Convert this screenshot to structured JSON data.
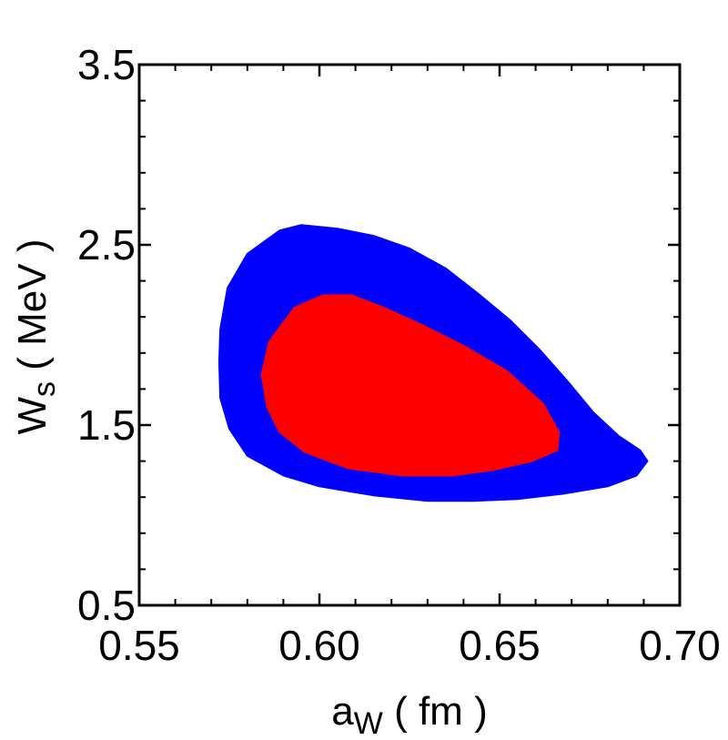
{
  "chart_data": {
    "type": "contour",
    "title": "",
    "xlabel": {
      "main": "a",
      "sub": "W",
      "unit": " ( fm )"
    },
    "ylabel": {
      "main": "W",
      "sub": "s",
      "unit": " ( MeV )"
    },
    "xlim": [
      0.55,
      0.7
    ],
    "ylim": [
      0.5,
      3.5
    ],
    "x_tick_labels": [
      "0.55",
      "0.60",
      "0.65",
      "0.70"
    ],
    "x_ticks": [
      0.55,
      0.6,
      0.65,
      0.7
    ],
    "y_tick_labels": [
      "0.5",
      "1.5",
      "2.5",
      "3.5"
    ],
    "y_ticks": [
      0.5,
      1.5,
      2.5,
      3.5
    ],
    "grid": false,
    "regions": [
      {
        "name": "outer-confidence-region",
        "color": "#0000ff",
        "points": [
          [
            0.5725,
            2.03
          ],
          [
            0.5745,
            2.26
          ],
          [
            0.58,
            2.45
          ],
          [
            0.589,
            2.58
          ],
          [
            0.595,
            2.61
          ],
          [
            0.605,
            2.59
          ],
          [
            0.615,
            2.55
          ],
          [
            0.625,
            2.48
          ],
          [
            0.635,
            2.37
          ],
          [
            0.644,
            2.23
          ],
          [
            0.653,
            2.08
          ],
          [
            0.661,
            1.92
          ],
          [
            0.669,
            1.74
          ],
          [
            0.676,
            1.57
          ],
          [
            0.683,
            1.44
          ],
          [
            0.689,
            1.36
          ],
          [
            0.691,
            1.3
          ],
          [
            0.688,
            1.22
          ],
          [
            0.68,
            1.16
          ],
          [
            0.668,
            1.12
          ],
          [
            0.655,
            1.09
          ],
          [
            0.643,
            1.08
          ],
          [
            0.63,
            1.08
          ],
          [
            0.615,
            1.11
          ],
          [
            0.6,
            1.16
          ],
          [
            0.59,
            1.22
          ],
          [
            0.58,
            1.33
          ],
          [
            0.575,
            1.48
          ],
          [
            0.5725,
            1.65
          ],
          [
            0.5722,
            1.85
          ]
        ]
      },
      {
        "name": "inner-confidence-region",
        "color": "#ff0000",
        "points": [
          [
            0.584,
            1.78
          ],
          [
            0.586,
            1.96
          ],
          [
            0.593,
            2.15
          ],
          [
            0.601,
            2.22
          ],
          [
            0.609,
            2.22
          ],
          [
            0.618,
            2.15
          ],
          [
            0.628,
            2.06
          ],
          [
            0.64,
            1.94
          ],
          [
            0.652,
            1.8
          ],
          [
            0.662,
            1.62
          ],
          [
            0.6665,
            1.46
          ],
          [
            0.666,
            1.36
          ],
          [
            0.659,
            1.3
          ],
          [
            0.648,
            1.25
          ],
          [
            0.637,
            1.22
          ],
          [
            0.623,
            1.22
          ],
          [
            0.608,
            1.26
          ],
          [
            0.596,
            1.35
          ],
          [
            0.589,
            1.46
          ],
          [
            0.5855,
            1.6
          ]
        ]
      }
    ]
  }
}
